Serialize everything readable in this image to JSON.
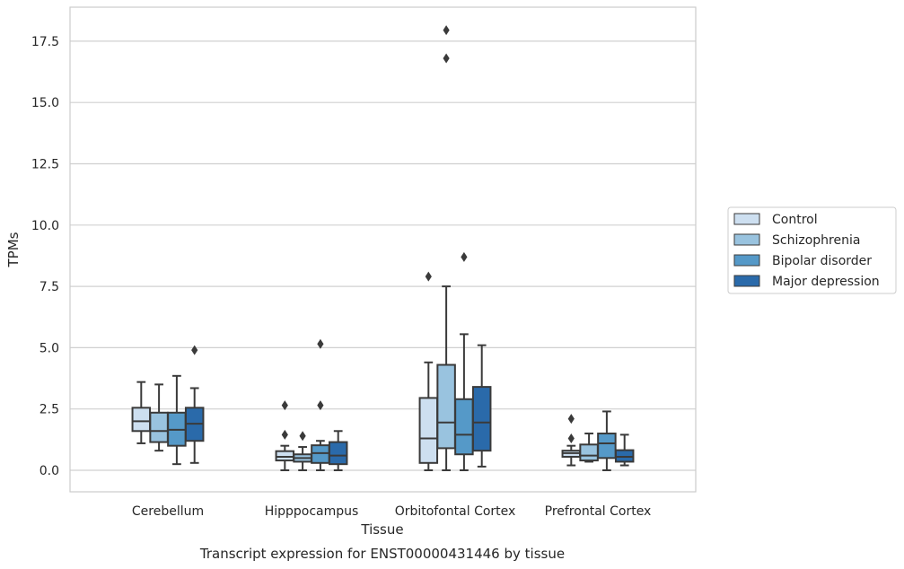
{
  "chart_data": {
    "type": "box",
    "title": "",
    "caption": "Transcript expression for ENST00000431446 by tissue",
    "xlabel": "Tissue",
    "ylabel": "TPMs",
    "ylim": [
      -0.9,
      18.8
    ],
    "yticks": [
      0.0,
      2.5,
      5.0,
      7.5,
      10.0,
      12.5,
      15.0,
      17.5
    ],
    "ytick_labels": [
      "0.0",
      "2.5",
      "5.0",
      "7.5",
      "10.0",
      "12.5",
      "15.0",
      "17.5"
    ],
    "grid": "horizontal",
    "legend_position": "right",
    "categories": [
      "Cerebellum",
      "Hipppocampus",
      "Orbitofontal Cortex",
      "Prefrontal Cortex"
    ],
    "series": [
      {
        "name": "Control",
        "color": "#cddff0",
        "boxes": [
          {
            "whislo": 1.1,
            "q1": 1.6,
            "med": 2.0,
            "q3": 2.55,
            "whishi": 3.6,
            "fliers": []
          },
          {
            "whislo": 0.0,
            "q1": 0.4,
            "med": 0.55,
            "q3": 0.78,
            "whishi": 1.0,
            "fliers": [
              1.45,
              2.65
            ]
          },
          {
            "whislo": 0.0,
            "q1": 0.3,
            "med": 1.3,
            "q3": 2.95,
            "whishi": 4.4,
            "fliers": [
              7.9
            ]
          },
          {
            "whislo": 0.2,
            "q1": 0.55,
            "med": 0.7,
            "q3": 0.8,
            "whishi": 1.0,
            "fliers": [
              1.3,
              2.1
            ]
          }
        ]
      },
      {
        "name": "Schizophrenia",
        "color": "#99c3df",
        "boxes": [
          {
            "whislo": 0.8,
            "q1": 1.15,
            "med": 1.6,
            "q3": 2.35,
            "whishi": 3.5,
            "fliers": []
          },
          {
            "whislo": 0.0,
            "q1": 0.35,
            "med": 0.5,
            "q3": 0.65,
            "whishi": 0.95,
            "fliers": [
              1.4
            ]
          },
          {
            "whislo": 0.0,
            "q1": 0.9,
            "med": 1.95,
            "q3": 4.3,
            "whishi": 7.5,
            "fliers": [
              16.8,
              17.95
            ]
          },
          {
            "whislo": 0.35,
            "q1": 0.4,
            "med": 0.6,
            "q3": 1.05,
            "whishi": 1.5,
            "fliers": []
          }
        ]
      },
      {
        "name": "Bipolar disorder",
        "color": "#5599c8",
        "boxes": [
          {
            "whislo": 0.25,
            "q1": 1.0,
            "med": 1.65,
            "q3": 2.35,
            "whishi": 3.85,
            "fliers": []
          },
          {
            "whislo": 0.0,
            "q1": 0.3,
            "med": 0.7,
            "q3": 1.02,
            "whishi": 1.2,
            "fliers": [
              2.65,
              5.15
            ]
          },
          {
            "whislo": 0.0,
            "q1": 0.65,
            "med": 1.45,
            "q3": 2.9,
            "whishi": 5.55,
            "fliers": [
              8.7
            ]
          },
          {
            "whislo": 0.0,
            "q1": 0.5,
            "med": 1.1,
            "q3": 1.5,
            "whishi": 2.4,
            "fliers": []
          }
        ]
      },
      {
        "name": "Major depression",
        "color": "#2a6aaa",
        "boxes": [
          {
            "whislo": 0.3,
            "q1": 1.2,
            "med": 1.9,
            "q3": 2.55,
            "whishi": 3.35,
            "fliers": [
              4.9
            ]
          },
          {
            "whislo": 0.0,
            "q1": 0.25,
            "med": 0.6,
            "q3": 1.15,
            "whishi": 1.6,
            "fliers": []
          },
          {
            "whislo": 0.15,
            "q1": 0.8,
            "med": 1.95,
            "q3": 3.4,
            "whishi": 5.1,
            "fliers": []
          },
          {
            "whislo": 0.2,
            "q1": 0.35,
            "med": 0.55,
            "q3": 0.82,
            "whishi": 1.45,
            "fliers": []
          }
        ]
      }
    ]
  }
}
